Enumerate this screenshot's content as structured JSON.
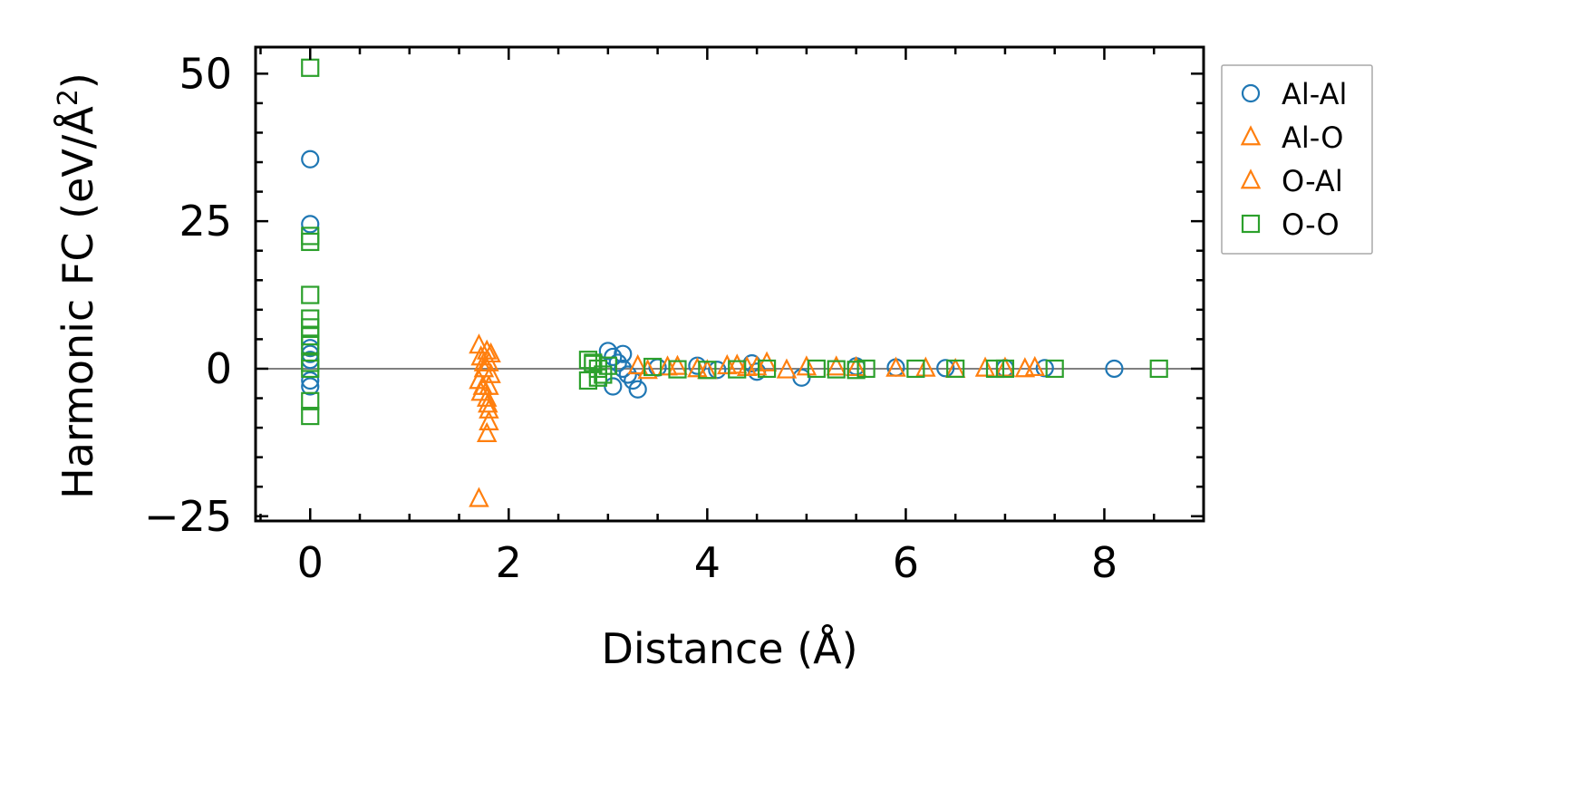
{
  "chart_data": {
    "type": "scatter",
    "xlabel": "Distance (Å)",
    "ylabel": "Harmonic FC (eV/Å",
    "ylabel_sup": "2",
    "ylabel_close": ")",
    "xlim": [
      -0.55,
      9.0
    ],
    "ylim": [
      -25.8,
      54.5
    ],
    "xticks": [
      0,
      2,
      4,
      6,
      8
    ],
    "xtick_labels": [
      "0",
      "2",
      "4",
      "6",
      "8"
    ],
    "yticks": [
      -25,
      0,
      25,
      50
    ],
    "ytick_labels": [
      "−25",
      "0",
      "25",
      "50"
    ],
    "zero_line": 0,
    "legend_position": "outside-right-top",
    "series": [
      {
        "name": "Al-Al",
        "marker": "circle",
        "color": "#1f77b4",
        "points": [
          [
            0,
            35.5
          ],
          [
            0,
            24.5
          ],
          [
            0,
            3.5
          ],
          [
            0,
            2.5
          ],
          [
            0,
            1.5
          ],
          [
            0,
            -2
          ],
          [
            0,
            -3
          ],
          [
            3.0,
            3
          ],
          [
            3.05,
            2
          ],
          [
            3.1,
            1
          ],
          [
            3.15,
            0
          ],
          [
            3.2,
            -1
          ],
          [
            3.25,
            -2
          ],
          [
            3.3,
            -3.5
          ],
          [
            3.05,
            -3
          ],
          [
            3.15,
            2.5
          ],
          [
            3.5,
            0.2
          ],
          [
            3.9,
            0.5
          ],
          [
            4.1,
            -0.2
          ],
          [
            4.45,
            0.9
          ],
          [
            4.5,
            -0.5
          ],
          [
            4.95,
            -1.5
          ],
          [
            5.5,
            0.4
          ],
          [
            5.9,
            0.2
          ],
          [
            6.4,
            0.1
          ],
          [
            7.0,
            0.1
          ],
          [
            7.4,
            0.1
          ],
          [
            8.1,
            0
          ]
        ]
      },
      {
        "name": "Al-O",
        "marker": "triangle",
        "color": "#ff7f0e",
        "points": [
          [
            1.7,
            4
          ],
          [
            1.72,
            2
          ],
          [
            1.75,
            0
          ],
          [
            1.7,
            -2
          ],
          [
            1.72,
            -4
          ],
          [
            1.7,
            -22
          ],
          [
            1.75,
            1
          ],
          [
            1.74,
            -3
          ],
          [
            3.3,
            0.5
          ],
          [
            3.6,
            0.3
          ],
          [
            3.9,
            0
          ],
          [
            4.2,
            0.5
          ],
          [
            4.5,
            0.3
          ],
          [
            4.6,
            1
          ],
          [
            5.0,
            0.3
          ],
          [
            5.5,
            0.2
          ],
          [
            6.2,
            0.1
          ],
          [
            6.8,
            0.1
          ],
          [
            7.2,
            0
          ],
          [
            7.3,
            0.2
          ]
        ]
      },
      {
        "name": "O-Al",
        "marker": "triangle",
        "color": "#ff7f0e",
        "points": [
          [
            1.78,
            3
          ],
          [
            1.8,
            1
          ],
          [
            1.82,
            -1
          ],
          [
            1.8,
            -3
          ],
          [
            1.78,
            -5
          ],
          [
            1.8,
            -7
          ],
          [
            1.8,
            -9
          ],
          [
            1.78,
            -11
          ],
          [
            1.82,
            2.5
          ],
          [
            1.79,
            -6
          ],
          [
            3.4,
            -0.3
          ],
          [
            3.7,
            0.4
          ],
          [
            4.0,
            -0.3
          ],
          [
            4.3,
            0.6
          ],
          [
            4.4,
            0.2
          ],
          [
            4.8,
            -0.2
          ],
          [
            5.3,
            0.3
          ],
          [
            5.9,
            0.1
          ],
          [
            6.5,
            -0.1
          ],
          [
            7.0,
            0.1
          ]
        ]
      },
      {
        "name": "O-O",
        "marker": "square",
        "color": "#2ca02c",
        "points": [
          [
            0,
            51
          ],
          [
            0,
            22.5
          ],
          [
            0,
            21.5
          ],
          [
            0,
            12.5
          ],
          [
            0,
            8.5
          ],
          [
            0,
            7
          ],
          [
            0,
            5.5
          ],
          [
            0,
            4
          ],
          [
            0,
            1
          ],
          [
            0,
            0
          ],
          [
            0,
            -5.5
          ],
          [
            0,
            -8
          ],
          [
            2.8,
            1.5
          ],
          [
            2.85,
            0.8
          ],
          [
            2.9,
            0
          ],
          [
            2.95,
            -1
          ],
          [
            2.8,
            -2
          ],
          [
            2.85,
            1
          ],
          [
            2.9,
            -1.5
          ],
          [
            3.0,
            0.5
          ],
          [
            3.45,
            0.3
          ],
          [
            3.7,
            -0.1
          ],
          [
            4.0,
            -0.2
          ],
          [
            4.3,
            -0.1
          ],
          [
            4.6,
            0
          ],
          [
            5.1,
            0
          ],
          [
            5.3,
            -0.1
          ],
          [
            5.5,
            -0.2
          ],
          [
            5.6,
            0
          ],
          [
            6.1,
            0
          ],
          [
            6.5,
            0
          ],
          [
            6.9,
            0
          ],
          [
            7.0,
            0
          ],
          [
            7.5,
            0
          ],
          [
            8.55,
            0
          ]
        ]
      }
    ]
  }
}
